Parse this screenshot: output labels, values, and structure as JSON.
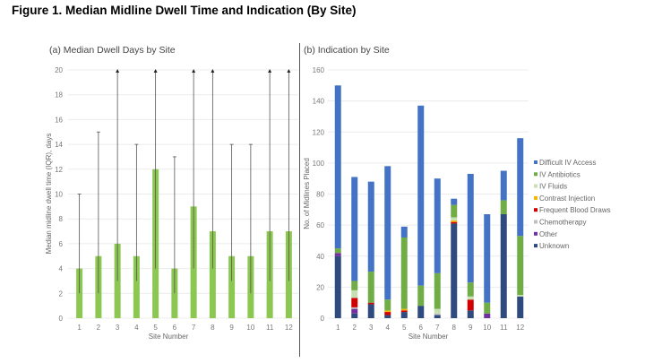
{
  "figure_title": "Figure 1. Median Midline Dwell Time and Indication (By Site)",
  "chart_data": [
    {
      "type": "bar",
      "title": "(a) Median Dwell Days by Site",
      "xlabel": "Site Number",
      "ylabel": "Median midline dwell time (IQR), days",
      "ylim": [
        0,
        20
      ],
      "yticks": [
        0,
        2,
        4,
        6,
        8,
        10,
        12,
        14,
        16,
        18,
        20
      ],
      "grid": true,
      "categories": [
        "1",
        "2",
        "3",
        "4",
        "5",
        "6",
        "7",
        "8",
        "9",
        "10",
        "11",
        "12"
      ],
      "values": [
        4,
        5,
        6,
        5,
        12,
        4,
        9,
        7,
        5,
        5,
        7,
        7
      ],
      "iqr_low": [
        2,
        2,
        3,
        3,
        4,
        2,
        4,
        4,
        3,
        2,
        3,
        3
      ],
      "iqr_high": [
        10,
        15,
        20,
        14,
        20,
        13,
        20,
        20,
        14,
        14,
        20,
        20
      ],
      "iqr_truncated": [
        false,
        false,
        true,
        false,
        true,
        false,
        true,
        true,
        false,
        false,
        true,
        true
      ],
      "bar_color": "#8cc751",
      "error_color": "#555555"
    },
    {
      "type": "bar",
      "stacked": true,
      "title": "(b) Indication by Site",
      "xlabel": "Site Number",
      "ylabel": "No. of Midlines Placed",
      "ylim": [
        0,
        160
      ],
      "yticks": [
        0,
        20,
        40,
        60,
        80,
        100,
        120,
        140,
        160
      ],
      "grid": true,
      "legend_position": "right",
      "categories": [
        "1",
        "2",
        "3",
        "4",
        "5",
        "6",
        "7",
        "8",
        "9",
        "10",
        "11",
        "12"
      ],
      "series": [
        {
          "name": "Unknown",
          "color": "#2e4a7e",
          "values": [
            40,
            3,
            9,
            2,
            4,
            8,
            2,
            61,
            5,
            0,
            67,
            14
          ]
        },
        {
          "name": "Other",
          "color": "#7030a0",
          "values": [
            2,
            3,
            0,
            0,
            0,
            0,
            0,
            0,
            0,
            3,
            0,
            0
          ]
        },
        {
          "name": "Chemotherapy",
          "color": "#bfbfbf",
          "values": [
            0,
            1,
            0,
            0,
            0,
            0,
            1,
            0,
            0,
            0,
            0,
            0
          ]
        },
        {
          "name": "Frequent Blood Draws",
          "color": "#d00000",
          "values": [
            0,
            6,
            1,
            2,
            1,
            0,
            0,
            1,
            7,
            0,
            0,
            0
          ]
        },
        {
          "name": "Contrast Injection",
          "color": "#f4b400",
          "values": [
            0,
            0,
            0,
            1,
            1,
            0,
            0,
            1,
            0,
            0,
            0,
            0
          ]
        },
        {
          "name": "IV Fluids",
          "color": "#c6e0b4",
          "values": [
            0,
            5,
            0,
            0,
            0,
            0,
            3,
            2,
            2,
            0,
            0,
            1
          ]
        },
        {
          "name": "IV Antibiotics",
          "color": "#70ad47",
          "values": [
            3,
            6,
            20,
            7,
            46,
            13,
            23,
            8,
            9,
            7,
            9,
            38
          ]
        },
        {
          "name": "Difficult IV Access",
          "color": "#4472c4",
          "values": [
            105,
            67,
            58,
            86,
            7,
            116,
            61,
            4,
            70,
            57,
            19,
            63
          ]
        }
      ],
      "legend_order": [
        "Difficult IV Access",
        "IV Antibiotics",
        "IV Fluids",
        "Contrast Injection",
        "Frequent Blood Draws",
        "Chemotherapy",
        "Other",
        "Unknown"
      ]
    }
  ]
}
